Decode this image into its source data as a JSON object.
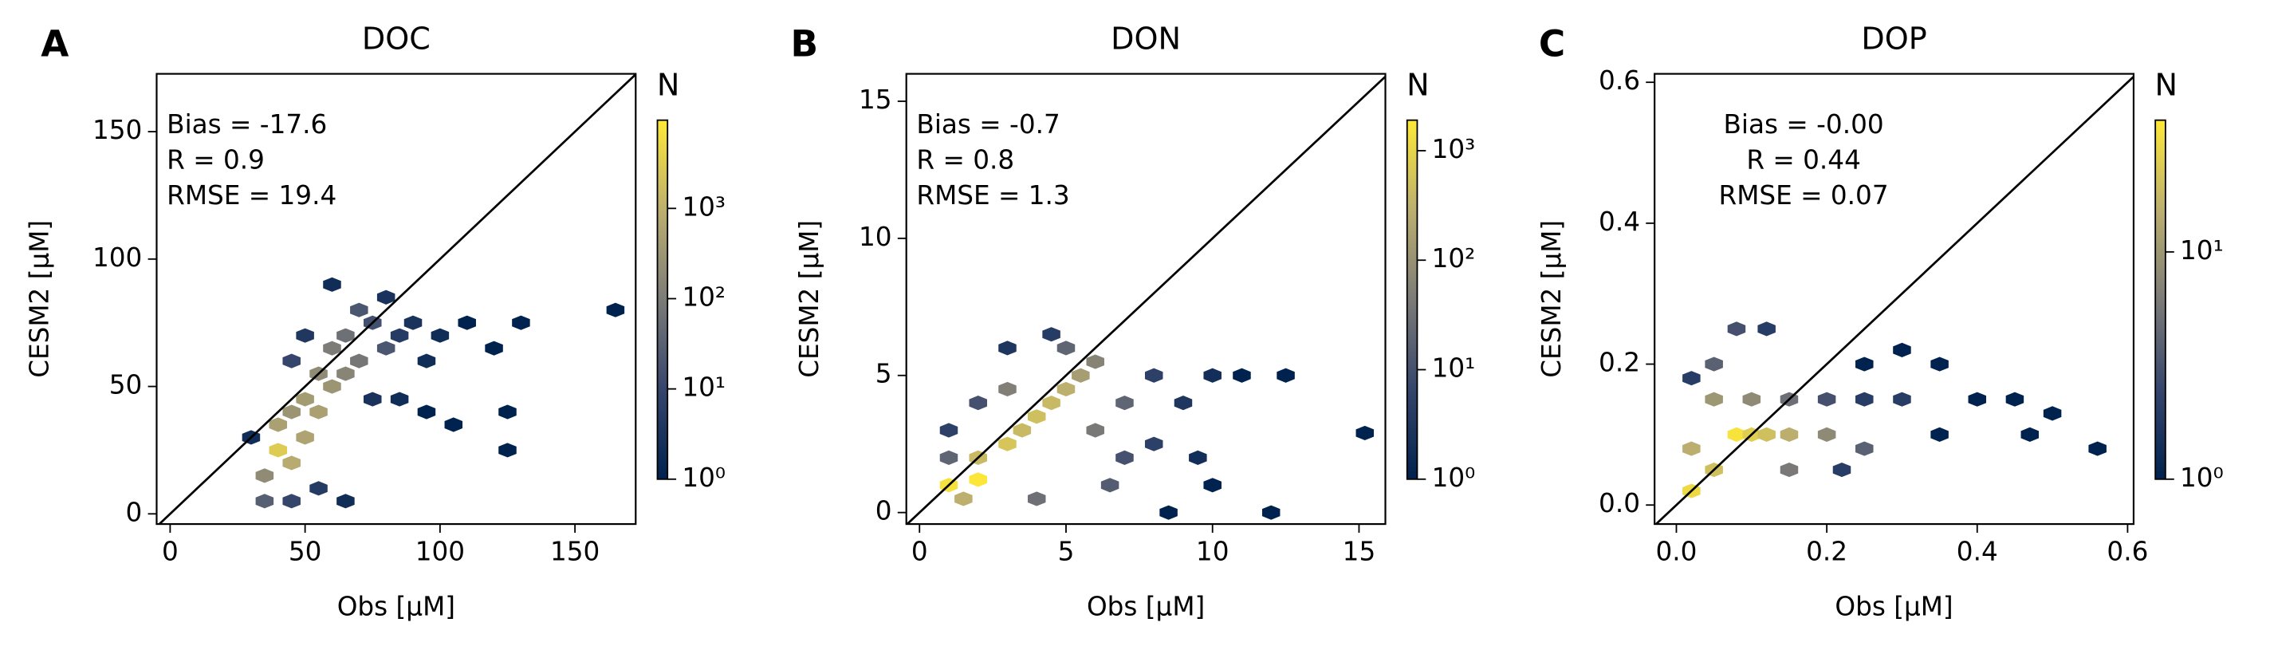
{
  "chart_data": [
    {
      "type": "hexbin",
      "panel_label": "A",
      "title": "DOC",
      "xlabel": "Obs [µM]",
      "ylabel": "CESM2 [µM]",
      "annotations": [
        "Bias = -17.6",
        "R = 0.9",
        "RMSE = 19.4"
      ],
      "annotation_align": "left",
      "xlim": [
        -5,
        172.5
      ],
      "ylim": [
        -4,
        172.7
      ],
      "xticks": [
        0,
        50,
        100,
        150
      ],
      "yticks": [
        0,
        50,
        100,
        150
      ],
      "x": [
        35,
        35,
        40,
        40,
        45,
        45,
        50,
        50,
        55,
        55,
        60,
        60,
        65,
        65,
        70,
        70,
        75,
        80,
        80,
        85,
        90,
        95,
        100,
        110,
        120,
        130,
        165,
        30,
        45,
        55,
        65,
        75,
        85,
        95,
        105,
        125,
        125,
        50,
        45,
        60
      ],
      "y": [
        5,
        15,
        25,
        35,
        20,
        40,
        30,
        45,
        40,
        55,
        50,
        65,
        55,
        70,
        60,
        80,
        75,
        85,
        65,
        70,
        75,
        60,
        70,
        75,
        65,
        75,
        80,
        30,
        5,
        10,
        5,
        45,
        45,
        40,
        35,
        40,
        25,
        70,
        60,
        90
      ],
      "values": [
        30,
        200,
        3000,
        500,
        800,
        300,
        600,
        400,
        500,
        200,
        300,
        100,
        150,
        60,
        80,
        20,
        15,
        3,
        20,
        5,
        3,
        2,
        2,
        1,
        1,
        1,
        1,
        2,
        10,
        5,
        2,
        3,
        2,
        1,
        1,
        1,
        1,
        4,
        10,
        2
      ],
      "colorbar_label": "N",
      "colorscale": "log",
      "clim": [
        1,
        9500
      ],
      "cticks": [
        {
          "value": 1,
          "label": "10⁰"
        },
        {
          "value": 10,
          "label": "10¹"
        },
        {
          "value": 100,
          "label": "10²"
        },
        {
          "value": 1000,
          "label": "10³"
        }
      ],
      "colormap": [
        "#00224e",
        "#35456c",
        "#7c7b78",
        "#bcaf6f",
        "#fee838"
      ]
    },
    {
      "type": "hexbin",
      "panel_label": "B",
      "title": "DON",
      "xlabel": "Obs [µM]",
      "ylabel": "CESM2 [µM]",
      "annotations": [
        "Bias = -0.7",
        "R = 0.8",
        "RMSE = 1.3"
      ],
      "annotation_align": "left",
      "xlim": [
        -0.45,
        15.9
      ],
      "ylim": [
        -0.42,
        16.0
      ],
      "xticks": [
        0,
        5,
        10,
        15
      ],
      "yticks": [
        0,
        5,
        10,
        15
      ],
      "x": [
        1,
        2,
        1.5,
        2,
        3,
        3.5,
        4,
        4.5,
        5,
        5.5,
        6,
        5,
        3,
        2,
        1,
        1,
        6,
        7,
        8,
        9,
        10,
        11,
        12.5,
        15.2,
        7,
        8,
        9.5,
        10,
        12,
        8.5,
        6.5,
        4,
        3,
        4.5
      ],
      "y": [
        1,
        1.2,
        0.5,
        2,
        2.5,
        3,
        3.5,
        4,
        4.5,
        5,
        5.5,
        6,
        4.5,
        4,
        3,
        2,
        3,
        4,
        5,
        4,
        5,
        5,
        5,
        2.9,
        2,
        2.5,
        2,
        1,
        0,
        0,
        1,
        0.5,
        6,
        6.5
      ],
      "values": [
        1500,
        1800,
        300,
        400,
        600,
        400,
        500,
        400,
        300,
        150,
        60,
        20,
        50,
        10,
        5,
        20,
        40,
        20,
        5,
        3,
        2,
        1,
        1,
        1,
        10,
        5,
        2,
        1,
        1,
        1,
        15,
        30,
        3,
        4
      ],
      "colorbar_label": "N",
      "colorscale": "log",
      "clim": [
        1,
        1900
      ],
      "cticks": [
        {
          "value": 1,
          "label": "10⁰"
        },
        {
          "value": 10,
          "label": "10¹"
        },
        {
          "value": 100,
          "label": "10²"
        },
        {
          "value": 1000,
          "label": "10³"
        }
      ],
      "colormap": [
        "#00224e",
        "#35456c",
        "#7c7b78",
        "#bcaf6f",
        "#fee838"
      ]
    },
    {
      "type": "hexbin",
      "panel_label": "C",
      "title": "DOP",
      "xlabel": "Obs [µM]",
      "ylabel": "CESM2 [µM]",
      "annotations": [
        "Bias = -0.00",
        "R = 0.44",
        "RMSE = 0.07"
      ],
      "annotation_align": "center",
      "xlim": [
        -0.029,
        0.608
      ],
      "ylim": [
        -0.027,
        0.612
      ],
      "xticks": [
        {
          "value": 0,
          "label": "0.0"
        },
        {
          "value": 0.2,
          "label": "0.2"
        },
        {
          "value": 0.4,
          "label": "0.4"
        },
        {
          "value": 0.6,
          "label": "0.6"
        }
      ],
      "yticks": [
        {
          "value": 0,
          "label": "0.0"
        },
        {
          "value": 0.2,
          "label": "0.2"
        },
        {
          "value": 0.4,
          "label": "0.4"
        },
        {
          "value": 0.6,
          "label": "0.6"
        }
      ],
      "x": [
        0.02,
        0.05,
        0.08,
        0.1,
        0.12,
        0.15,
        0.05,
        0.1,
        0.15,
        0.2,
        0.2,
        0.25,
        0.25,
        0.3,
        0.35,
        0.4,
        0.45,
        0.5,
        0.56,
        0.47,
        0.08,
        0.12,
        0.02,
        0.05,
        0.15,
        0.02,
        0.22,
        0.35,
        0.3,
        0.25
      ],
      "y": [
        0.02,
        0.05,
        0.1,
        0.1,
        0.1,
        0.1,
        0.15,
        0.15,
        0.15,
        0.1,
        0.15,
        0.15,
        0.2,
        0.15,
        0.2,
        0.15,
        0.15,
        0.13,
        0.08,
        0.1,
        0.25,
        0.25,
        0.18,
        0.2,
        0.05,
        0.08,
        0.05,
        0.1,
        0.22,
        0.08
      ],
      "values": [
        30,
        20,
        35,
        25,
        20,
        15,
        10,
        8,
        5,
        8,
        3,
        2,
        1,
        2,
        1,
        1,
        1,
        1,
        1,
        1,
        3,
        2,
        2,
        4,
        6,
        15,
        2,
        1,
        1,
        4
      ],
      "colorbar_label": "N",
      "colorscale": "log",
      "clim": [
        1,
        38
      ],
      "cticks": [
        {
          "value": 1,
          "label": "10⁰"
        },
        {
          "value": 10,
          "label": "10¹"
        }
      ],
      "colormap": [
        "#00224e",
        "#35456c",
        "#7c7b78",
        "#bcaf6f",
        "#fee838"
      ]
    }
  ]
}
